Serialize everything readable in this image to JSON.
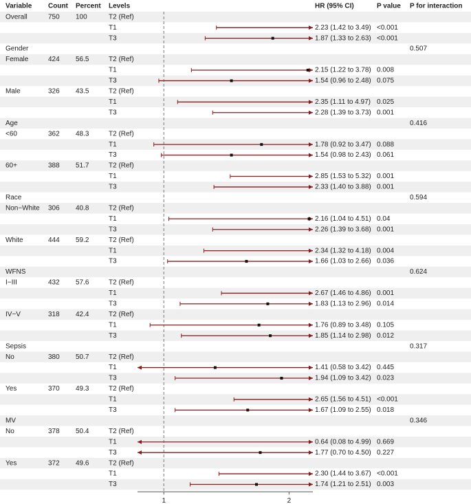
{
  "chart_data": {
    "type": "forest",
    "headers": [
      "Variable",
      "Count",
      "Percent",
      "Levels",
      "HR (95% CI)",
      "P value",
      "P for interaction"
    ],
    "xlim": [
      0.79,
      2.19
    ],
    "xticks": [
      1,
      2
    ],
    "reference_line": 1,
    "color": "#8b1a1a",
    "point_color": "#111111",
    "stripe_color": "#efefef",
    "rows": [
      {
        "variable": "Overall",
        "count": 750,
        "percent": 100,
        "level": "T2 (Ref)"
      },
      {
        "level": "T1",
        "hr": 2.23,
        "lower": 1.42,
        "upper": 3.49,
        "hr_label": "2.23 (1.42 to 3.49)",
        "p": "<0.001"
      },
      {
        "level": "T3",
        "hr": 1.87,
        "lower": 1.33,
        "upper": 2.63,
        "hr_label": "1.87 (1.33 to 2.63)",
        "p": "<0.001"
      },
      {
        "variable": "Gender",
        "p_interaction": 0.507
      },
      {
        "variable": "Female",
        "count": 424,
        "percent": 56.5,
        "level": "T2 (Ref)"
      },
      {
        "level": "T1",
        "hr": 2.15,
        "lower": 1.22,
        "upper": 3.78,
        "hr_label": "2.15 (1.22 to 3.78)",
        "p": 0.008
      },
      {
        "level": "T3",
        "hr": 1.54,
        "lower": 0.96,
        "upper": 2.48,
        "hr_label": "1.54 (0.96 to 2.48)",
        "p": 0.075
      },
      {
        "variable": "Male",
        "count": 326,
        "percent": 43.5,
        "level": "T2 (Ref)"
      },
      {
        "level": "T1",
        "hr": 2.35,
        "lower": 1.11,
        "upper": 4.97,
        "hr_label": "2.35 (1.11 to 4.97)",
        "p": 0.025
      },
      {
        "level": "T3",
        "hr": 2.28,
        "lower": 1.39,
        "upper": 3.73,
        "hr_label": "2.28 (1.39 to 3.73)",
        "p": 0.001
      },
      {
        "variable": "Age",
        "p_interaction": 0.416
      },
      {
        "variable": "<60",
        "count": 362,
        "percent": 48.3,
        "level": "T2 (Ref)"
      },
      {
        "level": "T1",
        "hr": 1.78,
        "lower": 0.92,
        "upper": 3.47,
        "hr_label": "1.78 (0.92 to 3.47)",
        "p": 0.088
      },
      {
        "level": "T3",
        "hr": 1.54,
        "lower": 0.98,
        "upper": 2.43,
        "hr_label": "1.54 (0.98 to 2.43)",
        "p": 0.061
      },
      {
        "variable": "60+",
        "count": 388,
        "percent": 51.7,
        "level": "T2 (Ref)"
      },
      {
        "level": "T1",
        "hr": 2.85,
        "lower": 1.53,
        "upper": 5.32,
        "hr_label": "2.85 (1.53 to 5.32)",
        "p": 0.001
      },
      {
        "level": "T3",
        "hr": 2.33,
        "lower": 1.4,
        "upper": 3.88,
        "hr_label": "2.33 (1.40 to 3.88)",
        "p": 0.001
      },
      {
        "variable": "Race",
        "p_interaction": 0.594
      },
      {
        "variable": "Non−White",
        "count": 306,
        "percent": 40.8,
        "level": "T2 (Ref)"
      },
      {
        "level": "T1",
        "hr": 2.16,
        "lower": 1.04,
        "upper": 4.51,
        "hr_label": "2.16 (1.04 to 4.51)",
        "p": 0.04
      },
      {
        "level": "T3",
        "hr": 2.26,
        "lower": 1.39,
        "upper": 3.68,
        "hr_label": "2.26 (1.39 to 3.68)",
        "p": 0.001
      },
      {
        "variable": "White",
        "count": 444,
        "percent": 59.2,
        "level": "T2 (Ref)"
      },
      {
        "level": "T1",
        "hr": 2.34,
        "lower": 1.32,
        "upper": 4.18,
        "hr_label": "2.34 (1.32 to 4.18)",
        "p": 0.004
      },
      {
        "level": "T3",
        "hr": 1.66,
        "lower": 1.03,
        "upper": 2.66,
        "hr_label": "1.66 (1.03 to 2.66)",
        "p": 0.036
      },
      {
        "variable": "WFNS",
        "p_interaction": 0.624
      },
      {
        "variable": "I−III",
        "count": 432,
        "percent": 57.6,
        "level": "T2 (Ref)"
      },
      {
        "level": "T1",
        "hr": 2.67,
        "lower": 1.46,
        "upper": 4.86,
        "hr_label": "2.67 (1.46 to 4.86)",
        "p": 0.001
      },
      {
        "level": "T3",
        "hr": 1.83,
        "lower": 1.13,
        "upper": 2.96,
        "hr_label": "1.83 (1.13 to 2.96)",
        "p": 0.014
      },
      {
        "variable": "IV−V",
        "count": 318,
        "percent": 42.4,
        "level": "T2 (Ref)"
      },
      {
        "level": "T1",
        "hr": 1.76,
        "lower": 0.89,
        "upper": 3.48,
        "hr_label": "1.76 (0.89 to 3.48)",
        "p": 0.105
      },
      {
        "level": "T3",
        "hr": 1.85,
        "lower": 1.14,
        "upper": 2.98,
        "hr_label": "1.85 (1.14 to 2.98)",
        "p": 0.012
      },
      {
        "variable": "Sepsis",
        "p_interaction": 0.317
      },
      {
        "variable": "No",
        "count": 380,
        "percent": 50.7,
        "level": "T2 (Ref)"
      },
      {
        "level": "T1",
        "hr": 1.41,
        "lower": 0.58,
        "upper": 3.42,
        "hr_label": "1.41 (0.58 to 3.42)",
        "p": 0.445
      },
      {
        "level": "T3",
        "hr": 1.94,
        "lower": 1.09,
        "upper": 3.42,
        "hr_label": "1.94 (1.09 to 3.42)",
        "p": 0.023
      },
      {
        "variable": "Yes",
        "count": 370,
        "percent": 49.3,
        "level": "T2 (Ref)"
      },
      {
        "level": "T1",
        "hr": 2.65,
        "lower": 1.56,
        "upper": 4.51,
        "hr_label": "2.65 (1.56 to 4.51)",
        "p": "<0.001"
      },
      {
        "level": "T3",
        "hr": 1.67,
        "lower": 1.09,
        "upper": 2.55,
        "hr_label": "1.67 (1.09 to 2.55)",
        "p": 0.018
      },
      {
        "variable": "MV",
        "p_interaction": 0.346
      },
      {
        "variable": "No",
        "count": 378,
        "percent": 50.4,
        "level": "T2 (Ref)"
      },
      {
        "level": "T1",
        "hr": 0.64,
        "lower": 0.08,
        "upper": 4.99,
        "hr_label": "0.64 (0.08 to 4.99)",
        "p": 0.669
      },
      {
        "level": "T3",
        "hr": 1.77,
        "lower": 0.7,
        "upper": 4.5,
        "hr_label": "1.77 (0.70 to 4.50)",
        "p": 0.227
      },
      {
        "variable": "Yes",
        "count": 372,
        "percent": 49.6,
        "level": "T2 (Ref)"
      },
      {
        "level": "T1",
        "hr": 2.3,
        "lower": 1.44,
        "upper": 3.67,
        "hr_label": "2.30 (1.44 to 3.67)",
        "p": "<0.001"
      },
      {
        "level": "T3",
        "hr": 1.74,
        "lower": 1.21,
        "upper": 2.51,
        "hr_label": "1.74 (1.21 to 2.51)",
        "p": 0.003
      }
    ]
  }
}
